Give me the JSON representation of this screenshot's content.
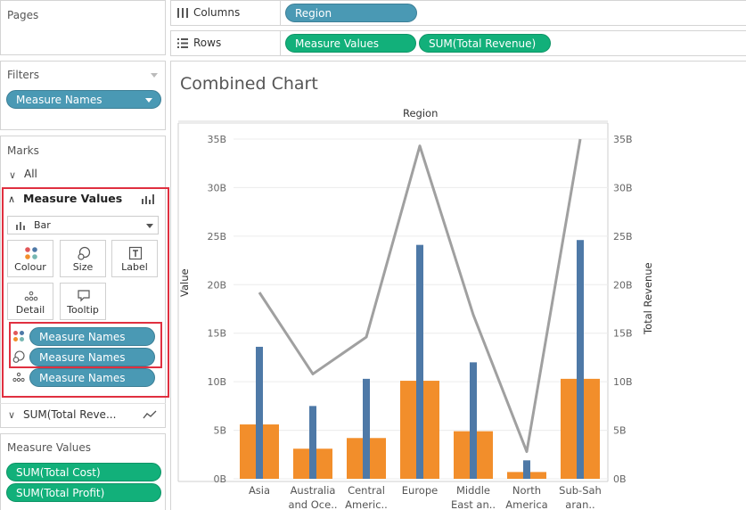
{
  "pages": {
    "title": "Pages"
  },
  "filters": {
    "title": "Filters",
    "pill": "Measure Names"
  },
  "marks": {
    "title": "Marks",
    "all_label": "All",
    "measure_values_label": "Measure Values",
    "mark_type": "Bar",
    "buttons": [
      "Colour",
      "Size",
      "Label",
      "Detail",
      "Tooltip"
    ],
    "pills": [
      "Measure Names",
      "Measure Names",
      "Measure Names"
    ],
    "sum_label": "SUM(Total Reve..."
  },
  "measure_values_card": {
    "title": "Measure Values",
    "pills": [
      "SUM(Total Cost)",
      "SUM(Total Profit)"
    ]
  },
  "shelves": {
    "columns_label": "Columns",
    "columns_pill": "Region",
    "rows_label": "Rows",
    "rows_pills": [
      "Measure Values",
      "SUM(Total Revenue)"
    ]
  },
  "colors": {
    "profit_bar": "#f28e2b",
    "cost_bar": "#4e79a7",
    "revenue_line": "#a0a0a0",
    "pill_blue": "#4a99b4",
    "pill_green": "#12b07a",
    "highlight": "#e03040"
  },
  "chart_data": {
    "type": "bar",
    "title": "Combined Chart",
    "header": "Region",
    "ylabel": "Value",
    "y2label": "Total Revenue",
    "ylim": [
      0,
      35
    ],
    "y_ticks": [
      "0B",
      "5B",
      "10B",
      "15B",
      "20B",
      "25B",
      "30B",
      "35B"
    ],
    "categories": [
      [
        "Asia"
      ],
      [
        "Australia",
        "and Oce.."
      ],
      [
        "Central",
        "Americ.."
      ],
      [
        "Europe"
      ],
      [
        "Middle",
        "East an.."
      ],
      [
        "North",
        "America"
      ],
      [
        "Sub-Sah",
        "aran.."
      ]
    ],
    "series": [
      {
        "values": [
          5.6,
          3.1,
          4.2,
          10.1,
          4.9,
          0.7,
          10.3
        ]
      },
      {
        "values": [
          13.6,
          7.5,
          10.3,
          24.1,
          12.0,
          1.9,
          24.6
        ]
      },
      {
        "values": [
          19.2,
          10.8,
          14.6,
          34.3,
          16.9,
          2.8,
          35.0
        ]
      }
    ]
  }
}
